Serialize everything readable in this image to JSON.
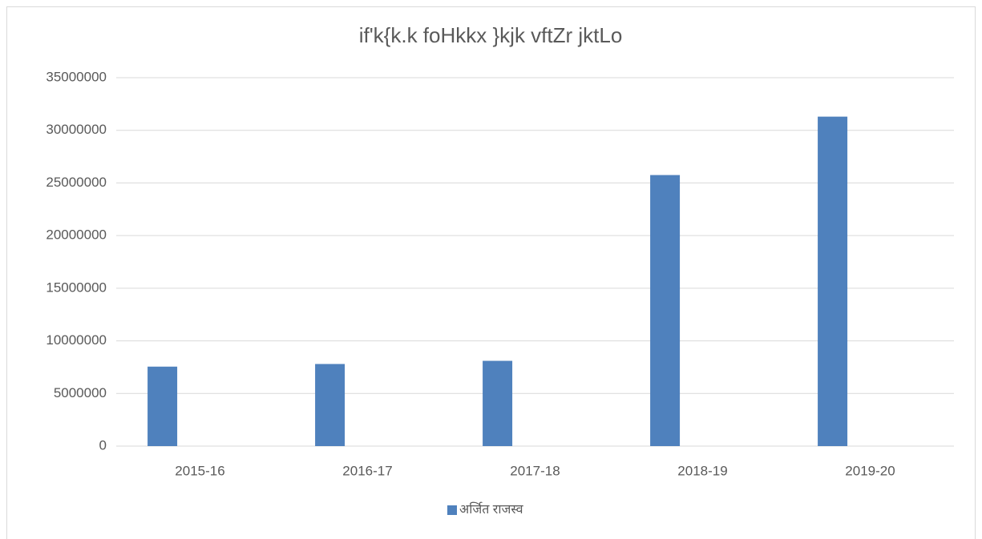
{
  "chart_data": {
    "type": "bar",
    "title": "if'k{k.k foHkkx }kjk vftZr jktLo",
    "categories": [
      "2015-16",
      "2016-17",
      "2017-18",
      "2018-19",
      "2019-20"
    ],
    "series": [
      {
        "name": "अर्जित राजस्व",
        "color": "#4f81bd",
        "values": [
          7550000,
          7800000,
          8100000,
          25750000,
          31300000
        ]
      }
    ],
    "ylim": [
      0,
      35000000
    ],
    "yticks": [
      0,
      5000000,
      10000000,
      15000000,
      20000000,
      25000000,
      30000000,
      35000000
    ],
    "grid": true,
    "legend": "bottom"
  }
}
